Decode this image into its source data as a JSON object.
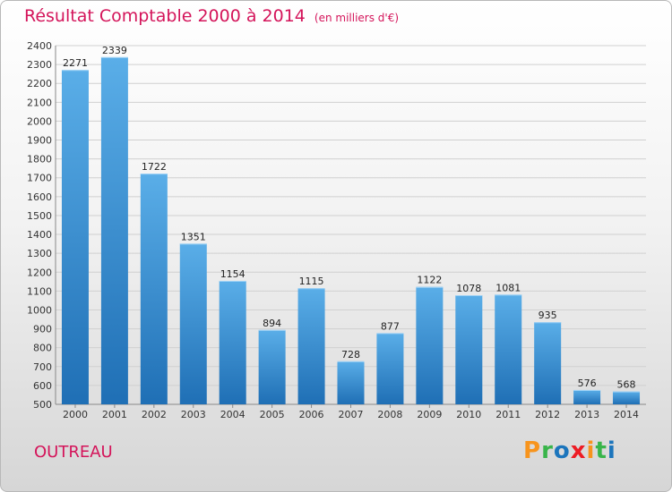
{
  "title": "Résultat Comptable 2000 à 2014",
  "unit_note": "(en milliers d'€)",
  "commune": "OUTREAU",
  "logo": {
    "text": "Proxiti",
    "letters": [
      "P",
      "r",
      "o",
      "x",
      "i",
      "t",
      "i"
    ],
    "colors": [
      "#f7941d",
      "#39b54a",
      "#1c75bc",
      "#ed1c24",
      "#f7941d",
      "#39b54a",
      "#1c75bc"
    ]
  },
  "colors": {
    "title": "#d4145a",
    "bar_light": "#5aaee8",
    "bar_dark": "#1f6fb5"
  },
  "chart_data": {
    "type": "bar",
    "title": "Résultat Comptable 2000 à 2014",
    "ylabel": "(en milliers d'€)",
    "xlabel": "",
    "categories": [
      "2000",
      "2001",
      "2002",
      "2003",
      "2004",
      "2005",
      "2006",
      "2007",
      "2008",
      "2009",
      "2010",
      "2011",
      "2012",
      "2013",
      "2014"
    ],
    "values": [
      2271,
      2339,
      1722,
      1351,
      1154,
      894,
      1115,
      728,
      877,
      1122,
      1078,
      1081,
      935,
      576,
      568
    ],
    "ylim": [
      500,
      2400
    ],
    "yticks": [
      500,
      600,
      700,
      800,
      900,
      1000,
      1100,
      1200,
      1300,
      1400,
      1500,
      1600,
      1700,
      1800,
      1900,
      2000,
      2100,
      2200,
      2300,
      2400
    ],
    "grid": true
  }
}
